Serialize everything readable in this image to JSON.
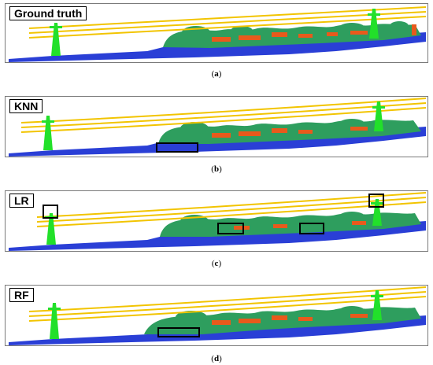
{
  "panels": [
    {
      "label": "Ground truth",
      "caption_letter": "a"
    },
    {
      "label": "KNN",
      "caption_letter": "b"
    },
    {
      "label": "LR",
      "caption_letter": "c"
    },
    {
      "label": "RF",
      "caption_letter": "d"
    }
  ],
  "colors": {
    "ground": "#2a3fd6",
    "vegetation": "#2e9e5e",
    "building": "#e85a1c",
    "powerline": "#f2c400",
    "tower": "#22e02a",
    "highlight_box": "#000000"
  },
  "class_names": [
    "ground",
    "vegetation",
    "building",
    "powerline",
    "tower"
  ]
}
